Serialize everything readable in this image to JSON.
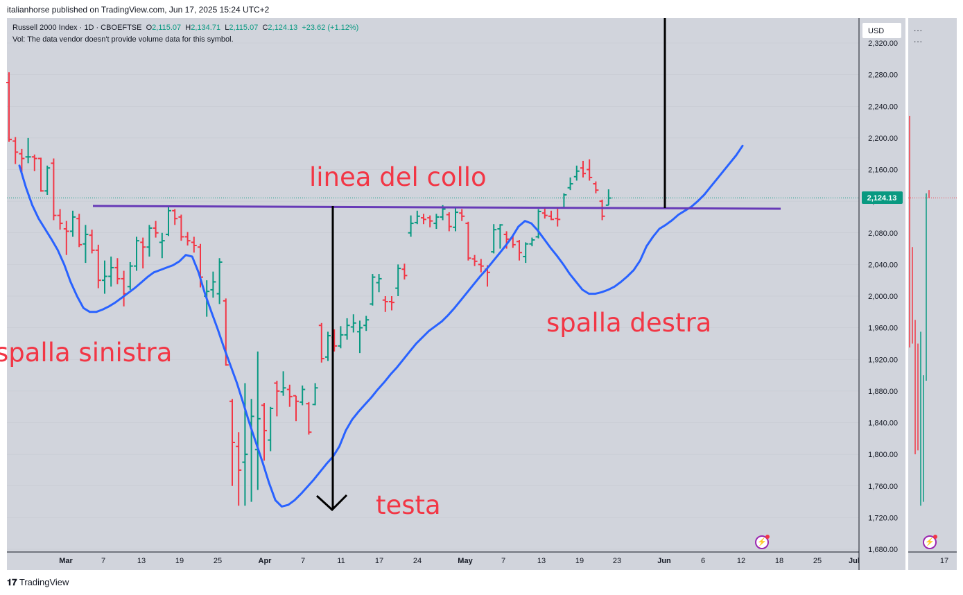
{
  "header": {
    "publish_line": "italianhorse published on TradingView.com, Jun 17, 2025 15:24 UTC+2"
  },
  "legend": {
    "symbol": "Russell 2000 Index · 1D · CBOEFTSE",
    "o_label": "O",
    "o": "2,115.07",
    "h_label": "H",
    "h": "2,134.71",
    "l_label": "L",
    "l": "2,115.07",
    "c_label": "C",
    "c": "2,124.13",
    "change": "+23.62 (+1.12%)",
    "vol_note": "Vol: The data vendor doesn't provide volume data for this symbol."
  },
  "toolbar": {
    "currency": "USD",
    "more_icon": "...",
    "more_icon2": "..."
  },
  "price_tag": "2,124.13",
  "footer": {
    "logo": "TradingView"
  },
  "colors": {
    "up": "#089981",
    "down": "#f23645",
    "ma": "#2962ff",
    "neckline": "#673ab7",
    "annotation": "#f23645"
  },
  "chart_data": {
    "type": "ohlc",
    "symbol": "Russell 2000 Index",
    "interval": "1D",
    "ylim": [
      1680,
      2330
    ],
    "y_ticks": [
      "2,320.00",
      "2,280.00",
      "2,240.00",
      "2,200.00",
      "2,160.00",
      "2,120.00",
      "2,080.00",
      "2,040.00",
      "2,000.00",
      "1,960.00",
      "1,920.00",
      "1,880.00",
      "1,840.00",
      "1,800.00",
      "1,760.00",
      "1,720.00",
      "1,680.00"
    ],
    "x_ticks": [
      "Mar",
      "7",
      "13",
      "19",
      "25",
      "Apr",
      "7",
      "11",
      "17",
      "24",
      "May",
      "7",
      "13",
      "19",
      "23",
      "Jun",
      "6",
      "12",
      "18",
      "25",
      "Jul"
    ],
    "side_x_tick": "17",
    "last_price": 2124.13,
    "annotations": [
      "linea del collo",
      "spalla sinistra",
      "testa",
      "spalla destra"
    ],
    "bars": [
      {
        "o": 2270,
        "h": 2283,
        "l": 2195,
        "c": 2198
      },
      {
        "o": 2196,
        "h": 2201,
        "l": 2167,
        "c": 2182
      },
      {
        "o": 2180,
        "h": 2186,
        "l": 2157,
        "c": 2174
      },
      {
        "o": 2176,
        "h": 2200,
        "l": 2168,
        "c": 2176
      },
      {
        "o": 2176,
        "h": 2179,
        "l": 2158,
        "c": 2174
      },
      {
        "o": 2174,
        "h": 2175,
        "l": 2132,
        "c": 2133
      },
      {
        "o": 2133,
        "h": 2165,
        "l": 2128,
        "c": 2162
      },
      {
        "o": 2168,
        "h": 2174,
        "l": 2096,
        "c": 2102
      },
      {
        "o": 2102,
        "h": 2110,
        "l": 2084,
        "c": 2092
      },
      {
        "o": 2085,
        "h": 2095,
        "l": 2052,
        "c": 2082
      },
      {
        "o": 2082,
        "h": 2108,
        "l": 2075,
        "c": 2100
      },
      {
        "o": 2098,
        "h": 2104,
        "l": 2062,
        "c": 2065
      },
      {
        "o": 2066,
        "h": 2090,
        "l": 2042,
        "c": 2078
      },
      {
        "o": 2077,
        "h": 2084,
        "l": 2054,
        "c": 2058
      },
      {
        "o": 2058,
        "h": 2065,
        "l": 2010,
        "c": 2020
      },
      {
        "o": 2020,
        "h": 2045,
        "l": 2003,
        "c": 2025
      },
      {
        "o": 2025,
        "h": 2050,
        "l": 2012,
        "c": 2036
      },
      {
        "o": 2036,
        "h": 2048,
        "l": 2015,
        "c": 2022
      },
      {
        "o": 2022,
        "h": 2032,
        "l": 1987,
        "c": 2003
      },
      {
        "o": 2012,
        "h": 2043,
        "l": 2008,
        "c": 2038
      },
      {
        "o": 2038,
        "h": 2075,
        "l": 2032,
        "c": 2070
      },
      {
        "o": 2068,
        "h": 2074,
        "l": 2035,
        "c": 2062
      },
      {
        "o": 2062,
        "h": 2090,
        "l": 2050,
        "c": 2086
      },
      {
        "o": 2086,
        "h": 2095,
        "l": 2074,
        "c": 2080
      },
      {
        "o": 2068,
        "h": 2080,
        "l": 2048,
        "c": 2070
      },
      {
        "o": 2078,
        "h": 2114,
        "l": 2076,
        "c": 2108
      },
      {
        "o": 2108,
        "h": 2110,
        "l": 2090,
        "c": 2098
      },
      {
        "o": 2100,
        "h": 2103,
        "l": 2070,
        "c": 2075
      },
      {
        "o": 2075,
        "h": 2081,
        "l": 2064,
        "c": 2070
      },
      {
        "o": 2068,
        "h": 2075,
        "l": 2055,
        "c": 2064
      },
      {
        "o": 2062,
        "h": 2066,
        "l": 2011,
        "c": 2024
      },
      {
        "o": 2000,
        "h": 2020,
        "l": 1974,
        "c": 2006
      },
      {
        "o": 2008,
        "h": 2031,
        "l": 1998,
        "c": 2018
      },
      {
        "o": 2003,
        "h": 2048,
        "l": 1990,
        "c": 2043
      },
      {
        "o": 1994,
        "h": 1997,
        "l": 1912,
        "c": 1913
      },
      {
        "o": 1867,
        "h": 1870,
        "l": 1760,
        "c": 1815
      },
      {
        "o": 1810,
        "h": 1828,
        "l": 1735,
        "c": 1780
      },
      {
        "o": 1790,
        "h": 1890,
        "l": 1735,
        "c": 1800
      },
      {
        "o": 1840,
        "h": 1870,
        "l": 1740,
        "c": 1848
      },
      {
        "o": 1806,
        "h": 1930,
        "l": 1755,
        "c": 1845
      },
      {
        "o": 1862,
        "h": 1865,
        "l": 1792,
        "c": 1830
      },
      {
        "o": 1818,
        "h": 1860,
        "l": 1804,
        "c": 1858
      },
      {
        "o": 1890,
        "h": 1893,
        "l": 1848,
        "c": 1880
      },
      {
        "o": 1879,
        "h": 1905,
        "l": 1874,
        "c": 1884
      },
      {
        "o": 1882,
        "h": 1888,
        "l": 1860,
        "c": 1873
      },
      {
        "o": 1874,
        "h": 1874,
        "l": 1842,
        "c": 1867
      },
      {
        "o": 1866,
        "h": 1887,
        "l": 1862,
        "c": 1882
      },
      {
        "o": 1864,
        "h": 1866,
        "l": 1825,
        "c": 1828
      },
      {
        "o": 1863,
        "h": 1890,
        "l": 1862,
        "c": 1884
      },
      {
        "o": 1963,
        "h": 1966,
        "l": 1916,
        "c": 1921
      },
      {
        "o": 1923,
        "h": 1955,
        "l": 1918,
        "c": 1950
      },
      {
        "o": 1948,
        "h": 1958,
        "l": 1930,
        "c": 1937
      },
      {
        "o": 1937,
        "h": 1962,
        "l": 1934,
        "c": 1951
      },
      {
        "o": 1951,
        "h": 1972,
        "l": 1945,
        "c": 1963
      },
      {
        "o": 1961,
        "h": 1977,
        "l": 1954,
        "c": 1966
      },
      {
        "o": 1955,
        "h": 1969,
        "l": 1928,
        "c": 1960
      },
      {
        "o": 1963,
        "h": 1975,
        "l": 1956,
        "c": 1970
      },
      {
        "o": 1990,
        "h": 2028,
        "l": 1988,
        "c": 2024
      },
      {
        "o": 2017,
        "h": 2028,
        "l": 2005,
        "c": 2022
      },
      {
        "o": 1995,
        "h": 2000,
        "l": 1980,
        "c": 1993
      },
      {
        "o": 1993,
        "h": 2000,
        "l": 1982,
        "c": 1992
      },
      {
        "o": 2010,
        "h": 2040,
        "l": 2000,
        "c": 2035
      },
      {
        "o": 2034,
        "h": 2041,
        "l": 2021,
        "c": 2026
      },
      {
        "o": 2080,
        "h": 2102,
        "l": 2075,
        "c": 2092
      },
      {
        "o": 2093,
        "h": 2108,
        "l": 2091,
        "c": 2101
      },
      {
        "o": 2099,
        "h": 2104,
        "l": 2091,
        "c": 2097
      },
      {
        "o": 2099,
        "h": 2102,
        "l": 2087,
        "c": 2095
      },
      {
        "o": 2092,
        "h": 2104,
        "l": 2085,
        "c": 2100
      },
      {
        "o": 2100,
        "h": 2115,
        "l": 2096,
        "c": 2110
      },
      {
        "o": 2103,
        "h": 2106,
        "l": 2082,
        "c": 2088
      },
      {
        "o": 2087,
        "h": 2111,
        "l": 2082,
        "c": 2106
      },
      {
        "o": 2105,
        "h": 2110,
        "l": 2095,
        "c": 2101
      },
      {
        "o": 2092,
        "h": 2094,
        "l": 2045,
        "c": 2048
      },
      {
        "o": 2047,
        "h": 2052,
        "l": 2038,
        "c": 2044
      },
      {
        "o": 2040,
        "h": 2047,
        "l": 2030,
        "c": 2038
      },
      {
        "o": 2034,
        "h": 2039,
        "l": 2012,
        "c": 2030
      },
      {
        "o": 2056,
        "h": 2091,
        "l": 2054,
        "c": 2084
      },
      {
        "o": 2085,
        "h": 2091,
        "l": 2060,
        "c": 2090
      },
      {
        "o": 2078,
        "h": 2082,
        "l": 2060,
        "c": 2072
      },
      {
        "o": 2073,
        "h": 2076,
        "l": 2061,
        "c": 2065
      },
      {
        "o": 2069,
        "h": 2071,
        "l": 2045,
        "c": 2055
      },
      {
        "o": 2050,
        "h": 2068,
        "l": 2042,
        "c": 2066
      },
      {
        "o": 2066,
        "h": 2074,
        "l": 2063,
        "c": 2071
      },
      {
        "o": 2075,
        "h": 2110,
        "l": 2073,
        "c": 2107
      },
      {
        "o": 2105,
        "h": 2112,
        "l": 2098,
        "c": 2102
      },
      {
        "o": 2101,
        "h": 2108,
        "l": 2096,
        "c": 2097
      },
      {
        "o": 2098,
        "h": 2111,
        "l": 2088,
        "c": 2097
      },
      {
        "o": 2112,
        "h": 2130,
        "l": 2111,
        "c": 2128
      },
      {
        "o": 2137,
        "h": 2150,
        "l": 2134,
        "c": 2142
      },
      {
        "o": 2151,
        "h": 2165,
        "l": 2146,
        "c": 2158
      },
      {
        "o": 2162,
        "h": 2171,
        "l": 2150,
        "c": 2155
      },
      {
        "o": 2160,
        "h": 2173,
        "l": 2146,
        "c": 2150
      },
      {
        "o": 2142,
        "h": 2145,
        "l": 2130,
        "c": 2134
      },
      {
        "o": 2120,
        "h": 2122,
        "l": 2096,
        "c": 2101
      },
      {
        "o": 2115,
        "h": 2135,
        "l": 2115,
        "c": 2124
      }
    ],
    "moving_average": [
      [
        0,
        2165
      ],
      [
        1,
        2138
      ],
      [
        2,
        2115
      ],
      [
        3,
        2098
      ],
      [
        4,
        2085
      ],
      [
        5,
        2072
      ],
      [
        6,
        2058
      ],
      [
        7,
        2040
      ],
      [
        8,
        2018
      ],
      [
        9,
        2000
      ],
      [
        10,
        1985
      ],
      [
        11,
        1980
      ],
      [
        12,
        1980
      ],
      [
        13,
        1983
      ],
      [
        14,
        1987
      ],
      [
        15,
        1992
      ],
      [
        16,
        1998
      ],
      [
        17,
        2004
      ],
      [
        18,
        2010
      ],
      [
        19,
        2017
      ],
      [
        20,
        2024
      ],
      [
        21,
        2030
      ],
      [
        22,
        2033
      ],
      [
        23,
        2036
      ],
      [
        24,
        2039
      ],
      [
        25,
        2044
      ],
      [
        26,
        2052
      ],
      [
        27,
        2050
      ],
      [
        28,
        2030
      ],
      [
        29,
        2003
      ],
      [
        30,
        1980
      ],
      [
        31,
        1958
      ],
      [
        32,
        1934
      ],
      [
        33,
        1912
      ],
      [
        34,
        1890
      ],
      [
        35,
        1864
      ],
      [
        36,
        1838
      ],
      [
        37,
        1814
      ],
      [
        38,
        1790
      ],
      [
        39,
        1764
      ],
      [
        40,
        1742
      ],
      [
        41,
        1734
      ],
      [
        42,
        1736
      ],
      [
        43,
        1742
      ],
      [
        44,
        1750
      ],
      [
        45,
        1759
      ],
      [
        46,
        1768
      ],
      [
        47,
        1778
      ],
      [
        48,
        1788
      ],
      [
        49,
        1797
      ],
      [
        50,
        1810
      ],
      [
        51,
        1830
      ],
      [
        52,
        1844
      ],
      [
        53,
        1854
      ],
      [
        54,
        1863
      ],
      [
        55,
        1872
      ],
      [
        56,
        1882
      ],
      [
        57,
        1891
      ],
      [
        58,
        1901
      ],
      [
        59,
        1910
      ],
      [
        60,
        1920
      ],
      [
        61,
        1930
      ],
      [
        62,
        1940
      ],
      [
        63,
        1948
      ],
      [
        64,
        1956
      ],
      [
        65,
        1962
      ],
      [
        66,
        1968
      ],
      [
        67,
        1976
      ],
      [
        68,
        1985
      ],
      [
        69,
        1995
      ],
      [
        70,
        2005
      ],
      [
        71,
        2015
      ],
      [
        72,
        2025
      ],
      [
        73,
        2034
      ],
      [
        74,
        2044
      ],
      [
        75,
        2054
      ],
      [
        76,
        2064
      ],
      [
        77,
        2075
      ],
      [
        78,
        2088
      ],
      [
        79,
        2095
      ],
      [
        80,
        2092
      ],
      [
        81,
        2083
      ],
      [
        82,
        2072
      ],
      [
        83,
        2061
      ],
      [
        84,
        2051
      ],
      [
        85,
        2040
      ],
      [
        86,
        2028
      ],
      [
        87,
        2018
      ],
      [
        88,
        2008
      ],
      [
        89,
        2003
      ],
      [
        90,
        2003
      ],
      [
        91,
        2005
      ],
      [
        92,
        2008
      ],
      [
        93,
        2012
      ],
      [
        94,
        2018
      ],
      [
        95,
        2025
      ],
      [
        96,
        2033
      ],
      [
        97,
        2045
      ],
      [
        98,
        2063
      ],
      [
        99,
        2075
      ],
      [
        100,
        2085
      ],
      [
        101,
        2090
      ],
      [
        102,
        2096
      ],
      [
        103,
        2103
      ],
      [
        104,
        2108
      ],
      [
        105,
        2113
      ],
      [
        106,
        2120
      ],
      [
        107,
        2128
      ],
      [
        108,
        2138
      ],
      [
        109,
        2148
      ],
      [
        110,
        2158
      ],
      [
        111,
        2168
      ],
      [
        112,
        2178
      ],
      [
        113,
        2190
      ]
    ]
  }
}
